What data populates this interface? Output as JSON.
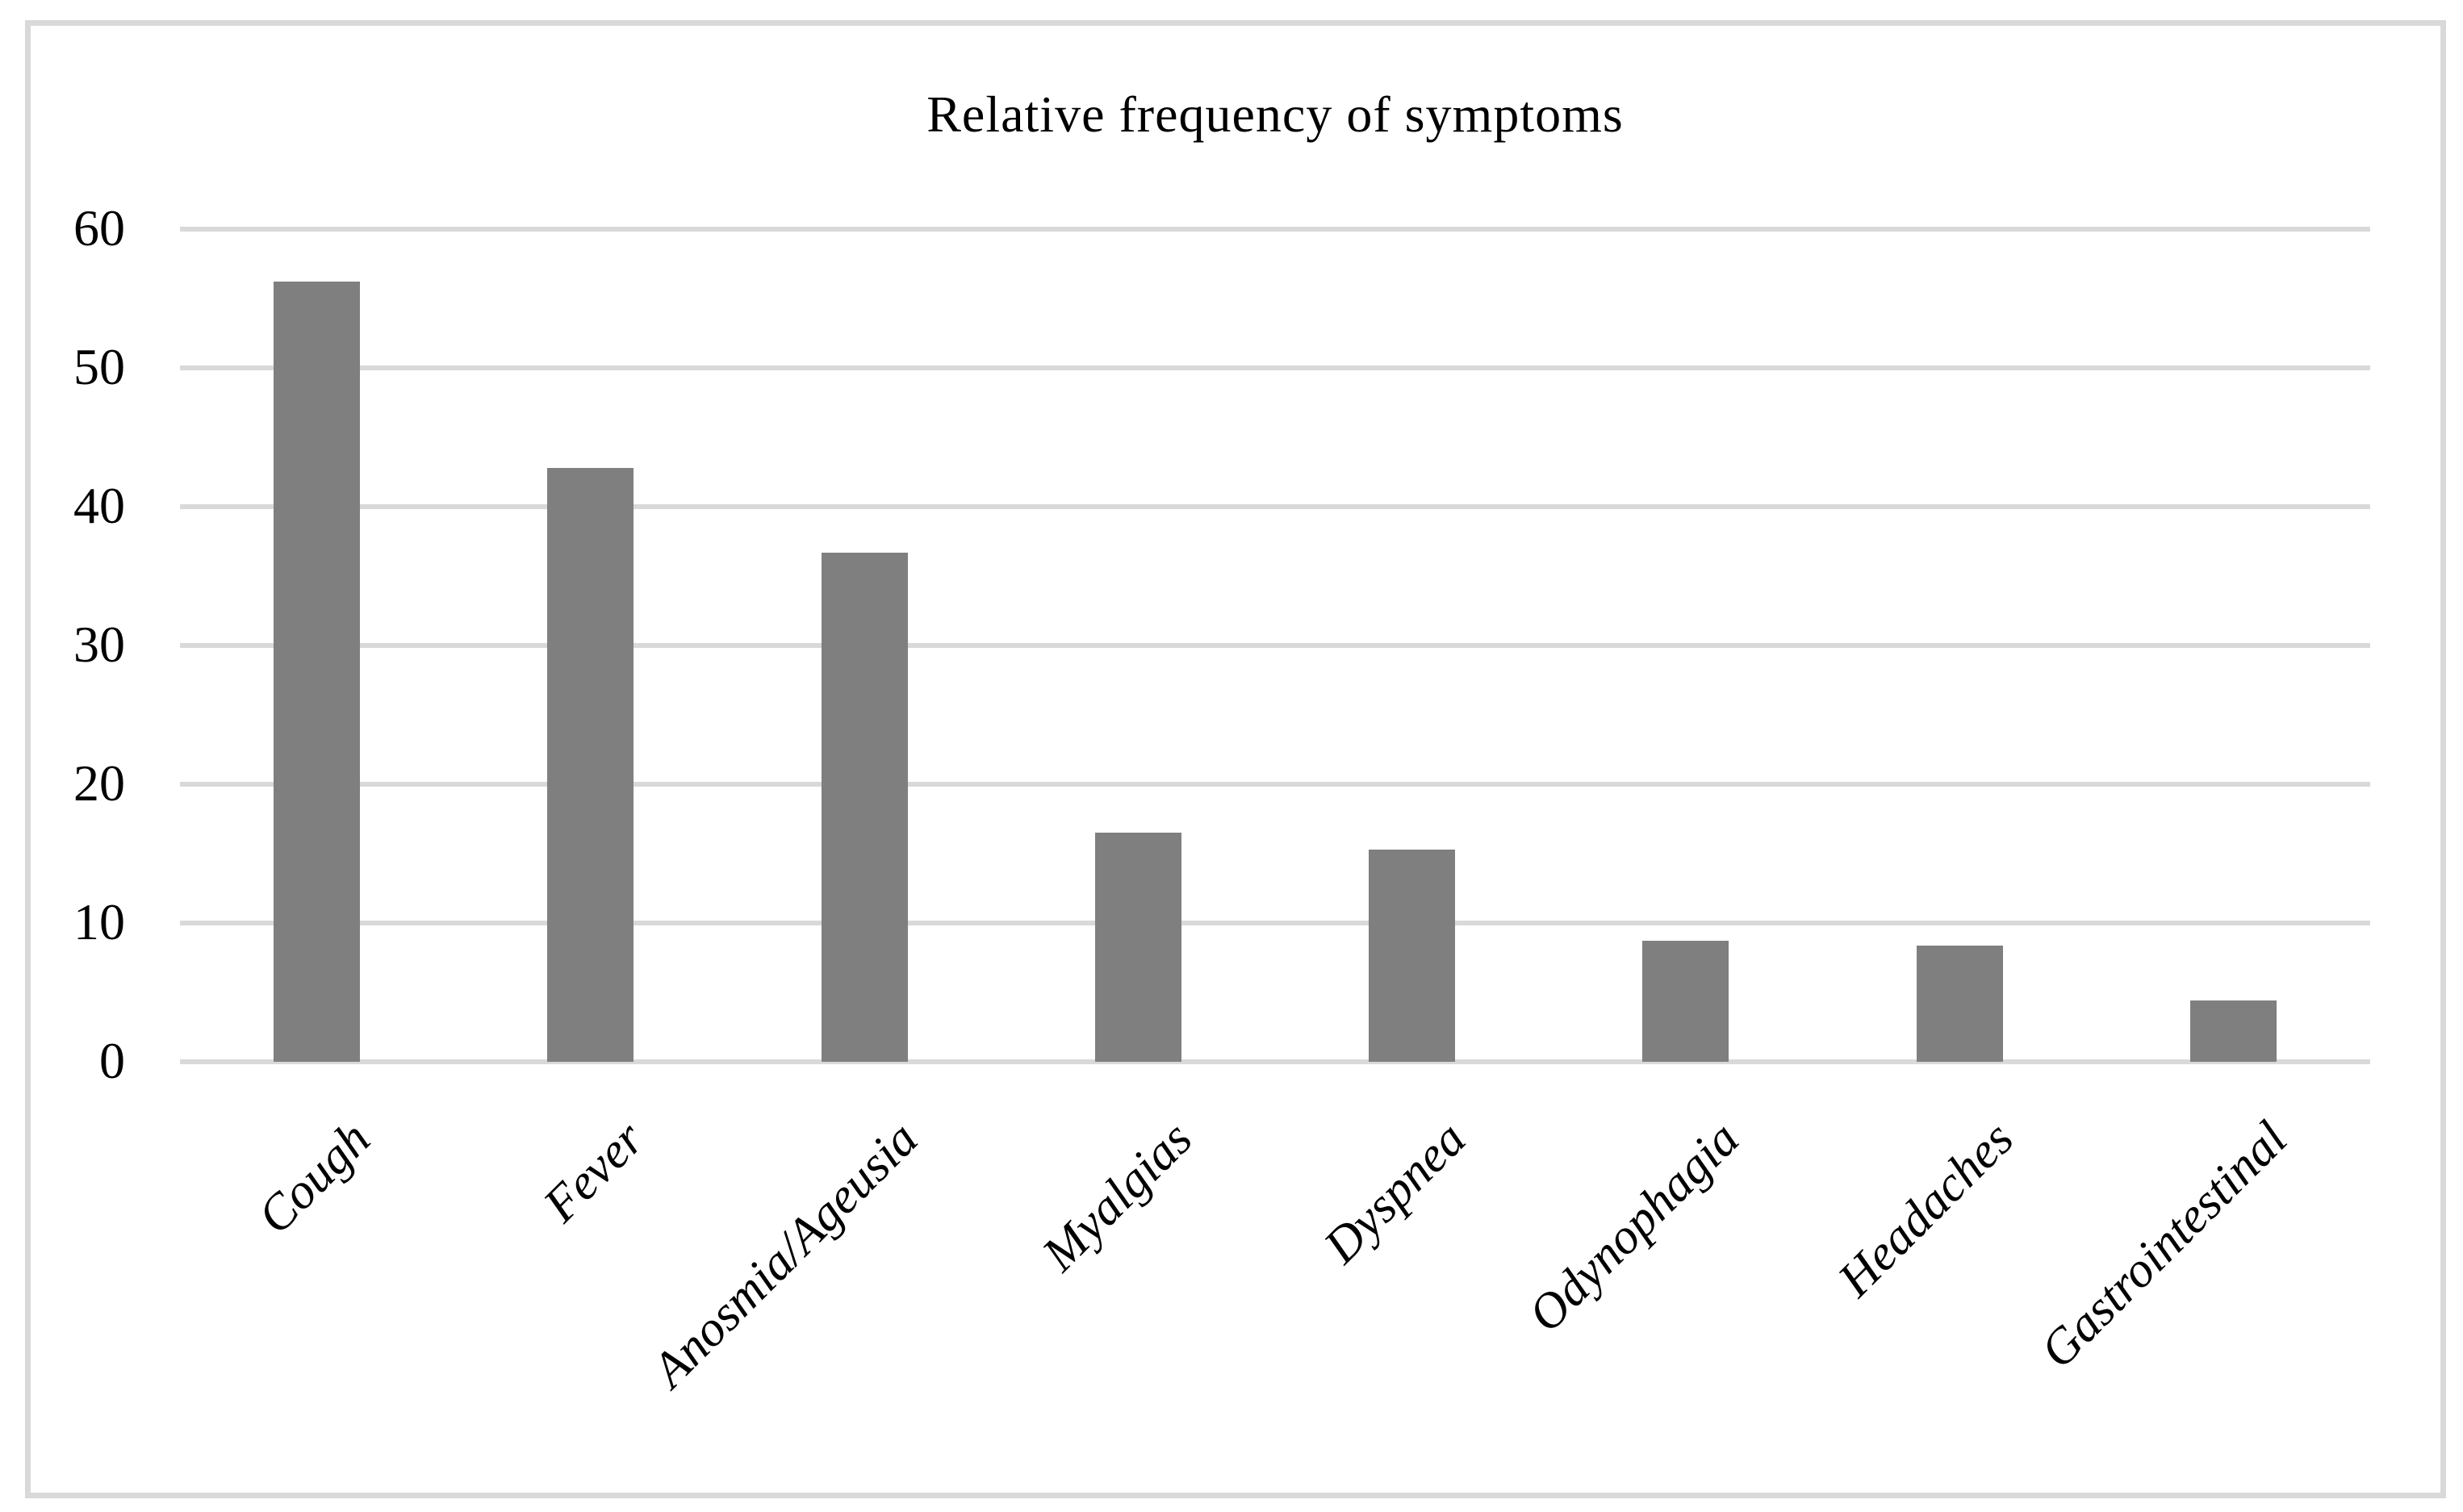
{
  "chart_data": {
    "type": "bar",
    "title": "Relative frequency of symptoms",
    "categories": [
      "Cough",
      "Fever",
      "Anosmia/Ageusia",
      "Myalgias",
      "Dyspnea",
      "Odynophagia",
      "Headaches",
      "Gastrointestinal"
    ],
    "values": [
      56.2,
      42.8,
      36.7,
      16.5,
      15.3,
      8.7,
      8.4,
      4.4
    ],
    "xlabel": "",
    "ylabel": "",
    "ylim": [
      0,
      60
    ],
    "yticks": [
      0,
      10,
      20,
      30,
      40,
      50,
      60
    ],
    "grid": "horizontal",
    "legend_position": "none",
    "bar_color": "#7F7F7F",
    "gridline_color": "#D9D9D9",
    "frame_color": "#D9D9D9",
    "text_color": "#000000",
    "category_label_style": "italic, rotated 45 degrees"
  }
}
